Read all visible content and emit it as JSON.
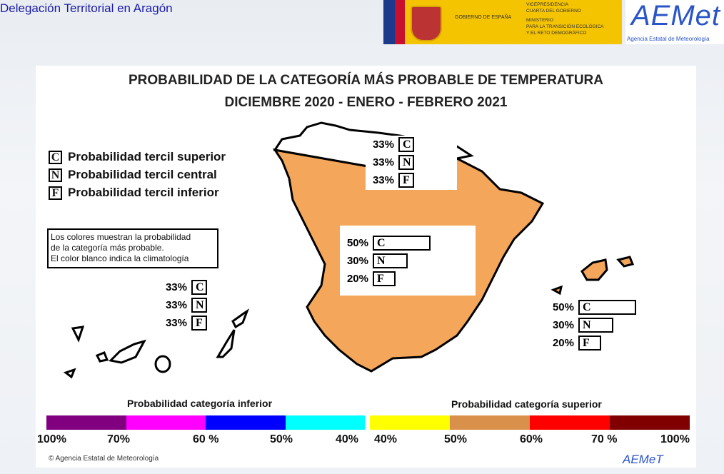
{
  "header": {
    "title": "Delegación Territorial en Aragón",
    "gobierno": "GOBIERNO DE ESPAÑA",
    "ministry_lines": [
      "VICEPRESIDENCIA",
      "CUARTA DEL GOBIERNO",
      "MINISTERIO",
      "PARA LA TRANSICIÓN ECOLÓGICA",
      "Y EL RETO DEMOGRÁFICO"
    ],
    "aemet_logo": "AEMet",
    "aemet_sub": "Agencia Estatal de Meteorología"
  },
  "map": {
    "title_line1": "PROBABILIDAD DE LA CATEGORÍA MÁS PROBABLE DE TEMPERATURA",
    "title_line2": "DICIEMBRE  2020 -  ENERO - FEBRERO  2021",
    "legend": [
      {
        "letter": "C",
        "label": "Probabilidad  tercil superior"
      },
      {
        "letter": "N",
        "label": "Probabilidad  tercil central"
      },
      {
        "letter": "F",
        "label": "Probabilidad  tercil inferior"
      }
    ],
    "note_lines": [
      "Los colores muestran la probabilidad",
      "de la categoría más probable.",
      "El color blanco indica la climatología"
    ],
    "regions": [
      {
        "name": "Canarias",
        "color": "#ffffff",
        "values": [
          {
            "letter": "C",
            "pct": "33%",
            "value": 33
          },
          {
            "letter": "N",
            "pct": "33%",
            "value": 33
          },
          {
            "letter": "F",
            "pct": "33%",
            "value": 33
          }
        ]
      },
      {
        "name": "Norte",
        "color": "#ffffff",
        "values": [
          {
            "letter": "C",
            "pct": "33%",
            "value": 33
          },
          {
            "letter": "N",
            "pct": "33%",
            "value": 33
          },
          {
            "letter": "F",
            "pct": "33%",
            "value": 33
          }
        ]
      },
      {
        "name": "Peninsula",
        "color": "#f4a65a",
        "values": [
          {
            "letter": "C",
            "pct": "50%",
            "value": 50
          },
          {
            "letter": "N",
            "pct": "30%",
            "value": 30
          },
          {
            "letter": "F",
            "pct": "20%",
            "value": 20
          }
        ]
      },
      {
        "name": "Baleares",
        "color": "#f4a65a",
        "values": [
          {
            "letter": "C",
            "pct": "50%",
            "value": 50
          },
          {
            "letter": "N",
            "pct": "30%",
            "value": 30
          },
          {
            "letter": "F",
            "pct": "20%",
            "value": 20
          }
        ]
      }
    ]
  },
  "scale": {
    "inferior_title": "Probabilidad categoría inferior",
    "superior_title": "Probabilidad categoría superior",
    "inferior_colors": [
      "#800080",
      "#ff00ff",
      "#0000ff",
      "#00ffff"
    ],
    "superior_colors": [
      "#ffff00",
      "#d9904a",
      "#ff0000",
      "#800000"
    ],
    "inferior_ticks": [
      "100%",
      "70%",
      "60 %",
      "50%",
      "40%"
    ],
    "superior_ticks": [
      "40%",
      "50%",
      "60%",
      "70 %",
      "100%"
    ]
  },
  "footer": {
    "copyright": "© Agencia Estatal de Meteorología",
    "logo": "AEMeT"
  }
}
